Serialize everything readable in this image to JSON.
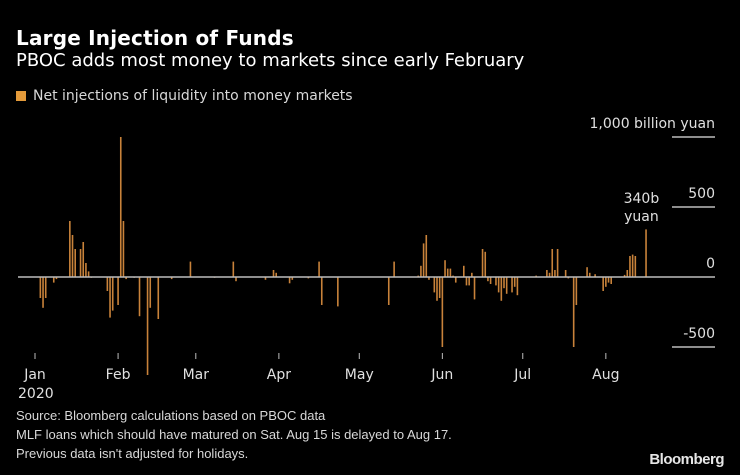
{
  "chart_data": {
    "type": "bar",
    "title": "Large Injection of Funds",
    "subtitle": "PBOC adds most money to markets since early February",
    "legend": [
      {
        "label": "Net injections of liquidity into money markets",
        "color": "#e39a3a"
      }
    ],
    "legend_position": "top-left",
    "ylabel": "billion yuan",
    "y_unit_label": "1,000 billion yuan",
    "ylim": [
      -500,
      1000
    ],
    "yticks": [
      {
        "value": 1000,
        "label": "1,000 billion yuan"
      },
      {
        "value": 500,
        "label": "500"
      },
      {
        "value": 0,
        "label": "0"
      },
      {
        "value": -500,
        "label": "-500"
      }
    ],
    "x_start_day_label": "Jan 1, 2020",
    "xticks": [
      {
        "day": 0,
        "label": "Jan",
        "sublabel": "2020"
      },
      {
        "day": 31,
        "label": "Feb"
      },
      {
        "day": 60,
        "label": "Mar"
      },
      {
        "day": 91,
        "label": "Apr"
      },
      {
        "day": 121,
        "label": "May"
      },
      {
        "day": 152,
        "label": "Jun"
      },
      {
        "day": 182,
        "label": "Jul"
      },
      {
        "day": 213,
        "label": "Aug"
      }
    ],
    "annotation": {
      "day": 230,
      "value": 340,
      "text_line1": "340b",
      "text_line2": "yuan"
    },
    "grid": false,
    "bars": [
      {
        "day": 2,
        "value": -150
      },
      {
        "day": 3,
        "value": -220
      },
      {
        "day": 4,
        "value": -150
      },
      {
        "day": 7,
        "value": -40
      },
      {
        "day": 8,
        "value": -15
      },
      {
        "day": 13,
        "value": 400
      },
      {
        "day": 14,
        "value": 300
      },
      {
        "day": 15,
        "value": 200
      },
      {
        "day": 17,
        "value": 200
      },
      {
        "day": 18,
        "value": 250
      },
      {
        "day": 19,
        "value": 100
      },
      {
        "day": 20,
        "value": 40
      },
      {
        "day": 21,
        "value": -5
      },
      {
        "day": 27,
        "value": -100
      },
      {
        "day": 28,
        "value": -290
      },
      {
        "day": 29,
        "value": -240
      },
      {
        "day": 31,
        "value": -200
      },
      {
        "day": 32,
        "value": 1000
      },
      {
        "day": 33,
        "value": 400
      },
      {
        "day": 34,
        "value": -15
      },
      {
        "day": 37,
        "value": 0
      },
      {
        "day": 39,
        "value": -280
      },
      {
        "day": 42,
        "value": -700
      },
      {
        "day": 43,
        "value": -220
      },
      {
        "day": 46,
        "value": -300
      },
      {
        "day": 51,
        "value": -15
      },
      {
        "day": 58,
        "value": 110
      },
      {
        "day": 67,
        "value": -5
      },
      {
        "day": 74,
        "value": 110
      },
      {
        "day": 75,
        "value": -30
      },
      {
        "day": 86,
        "value": -20
      },
      {
        "day": 89,
        "value": 50
      },
      {
        "day": 90,
        "value": 30
      },
      {
        "day": 95,
        "value": -45
      },
      {
        "day": 96,
        "value": -20
      },
      {
        "day": 102,
        "value": -10
      },
      {
        "day": 106,
        "value": 110
      },
      {
        "day": 107,
        "value": -200
      },
      {
        "day": 113,
        "value": -210
      },
      {
        "day": 132,
        "value": -200
      },
      {
        "day": 134,
        "value": 110
      },
      {
        "day": 143,
        "value": 10
      },
      {
        "day": 144,
        "value": 80
      },
      {
        "day": 145,
        "value": 240
      },
      {
        "day": 146,
        "value": 300
      },
      {
        "day": 147,
        "value": -20
      },
      {
        "day": 149,
        "value": -110
      },
      {
        "day": 150,
        "value": -170
      },
      {
        "day": 151,
        "value": -150
      },
      {
        "day": 152,
        "value": -500
      },
      {
        "day": 153,
        "value": 120
      },
      {
        "day": 154,
        "value": 60
      },
      {
        "day": 155,
        "value": 60
      },
      {
        "day": 156,
        "value": 10
      },
      {
        "day": 157,
        "value": -40
      },
      {
        "day": 160,
        "value": 80
      },
      {
        "day": 161,
        "value": -60
      },
      {
        "day": 162,
        "value": -60
      },
      {
        "day": 163,
        "value": 30
      },
      {
        "day": 164,
        "value": -160
      },
      {
        "day": 167,
        "value": 200
      },
      {
        "day": 168,
        "value": 180
      },
      {
        "day": 169,
        "value": -30
      },
      {
        "day": 170,
        "value": -50
      },
      {
        "day": 172,
        "value": -60
      },
      {
        "day": 173,
        "value": -110
      },
      {
        "day": 174,
        "value": -170
      },
      {
        "day": 175,
        "value": -80
      },
      {
        "day": 176,
        "value": -120
      },
      {
        "day": 178,
        "value": -110
      },
      {
        "day": 179,
        "value": -70
      },
      {
        "day": 180,
        "value": -130
      },
      {
        "day": 187,
        "value": 10
      },
      {
        "day": 191,
        "value": 50
      },
      {
        "day": 192,
        "value": 30
      },
      {
        "day": 193,
        "value": 200
      },
      {
        "day": 194,
        "value": 50
      },
      {
        "day": 195,
        "value": 200
      },
      {
        "day": 198,
        "value": 50
      },
      {
        "day": 199,
        "value": -10
      },
      {
        "day": 201,
        "value": -500
      },
      {
        "day": 202,
        "value": -200
      },
      {
        "day": 206,
        "value": 70
      },
      {
        "day": 207,
        "value": 30
      },
      {
        "day": 209,
        "value": 20
      },
      {
        "day": 212,
        "value": -100
      },
      {
        "day": 213,
        "value": -70
      },
      {
        "day": 214,
        "value": -40
      },
      {
        "day": 215,
        "value": -50
      },
      {
        "day": 220,
        "value": 15
      },
      {
        "day": 221,
        "value": 50
      },
      {
        "day": 222,
        "value": 150
      },
      {
        "day": 223,
        "value": 160
      },
      {
        "day": 224,
        "value": 150
      },
      {
        "day": 228,
        "value": 340
      }
    ]
  },
  "footer": {
    "source": "Source: Bloomberg calculations based on PBOC data",
    "note1": "MLF loans which should have matured on Sat. Aug 15 is delayed to Aug 17.",
    "note2": "Previous data isn't adjusted for holidays.",
    "brand": "Bloomberg"
  },
  "colors": {
    "bar": "#c8823a",
    "axis": "#bdbdbd",
    "background": "#000000"
  }
}
